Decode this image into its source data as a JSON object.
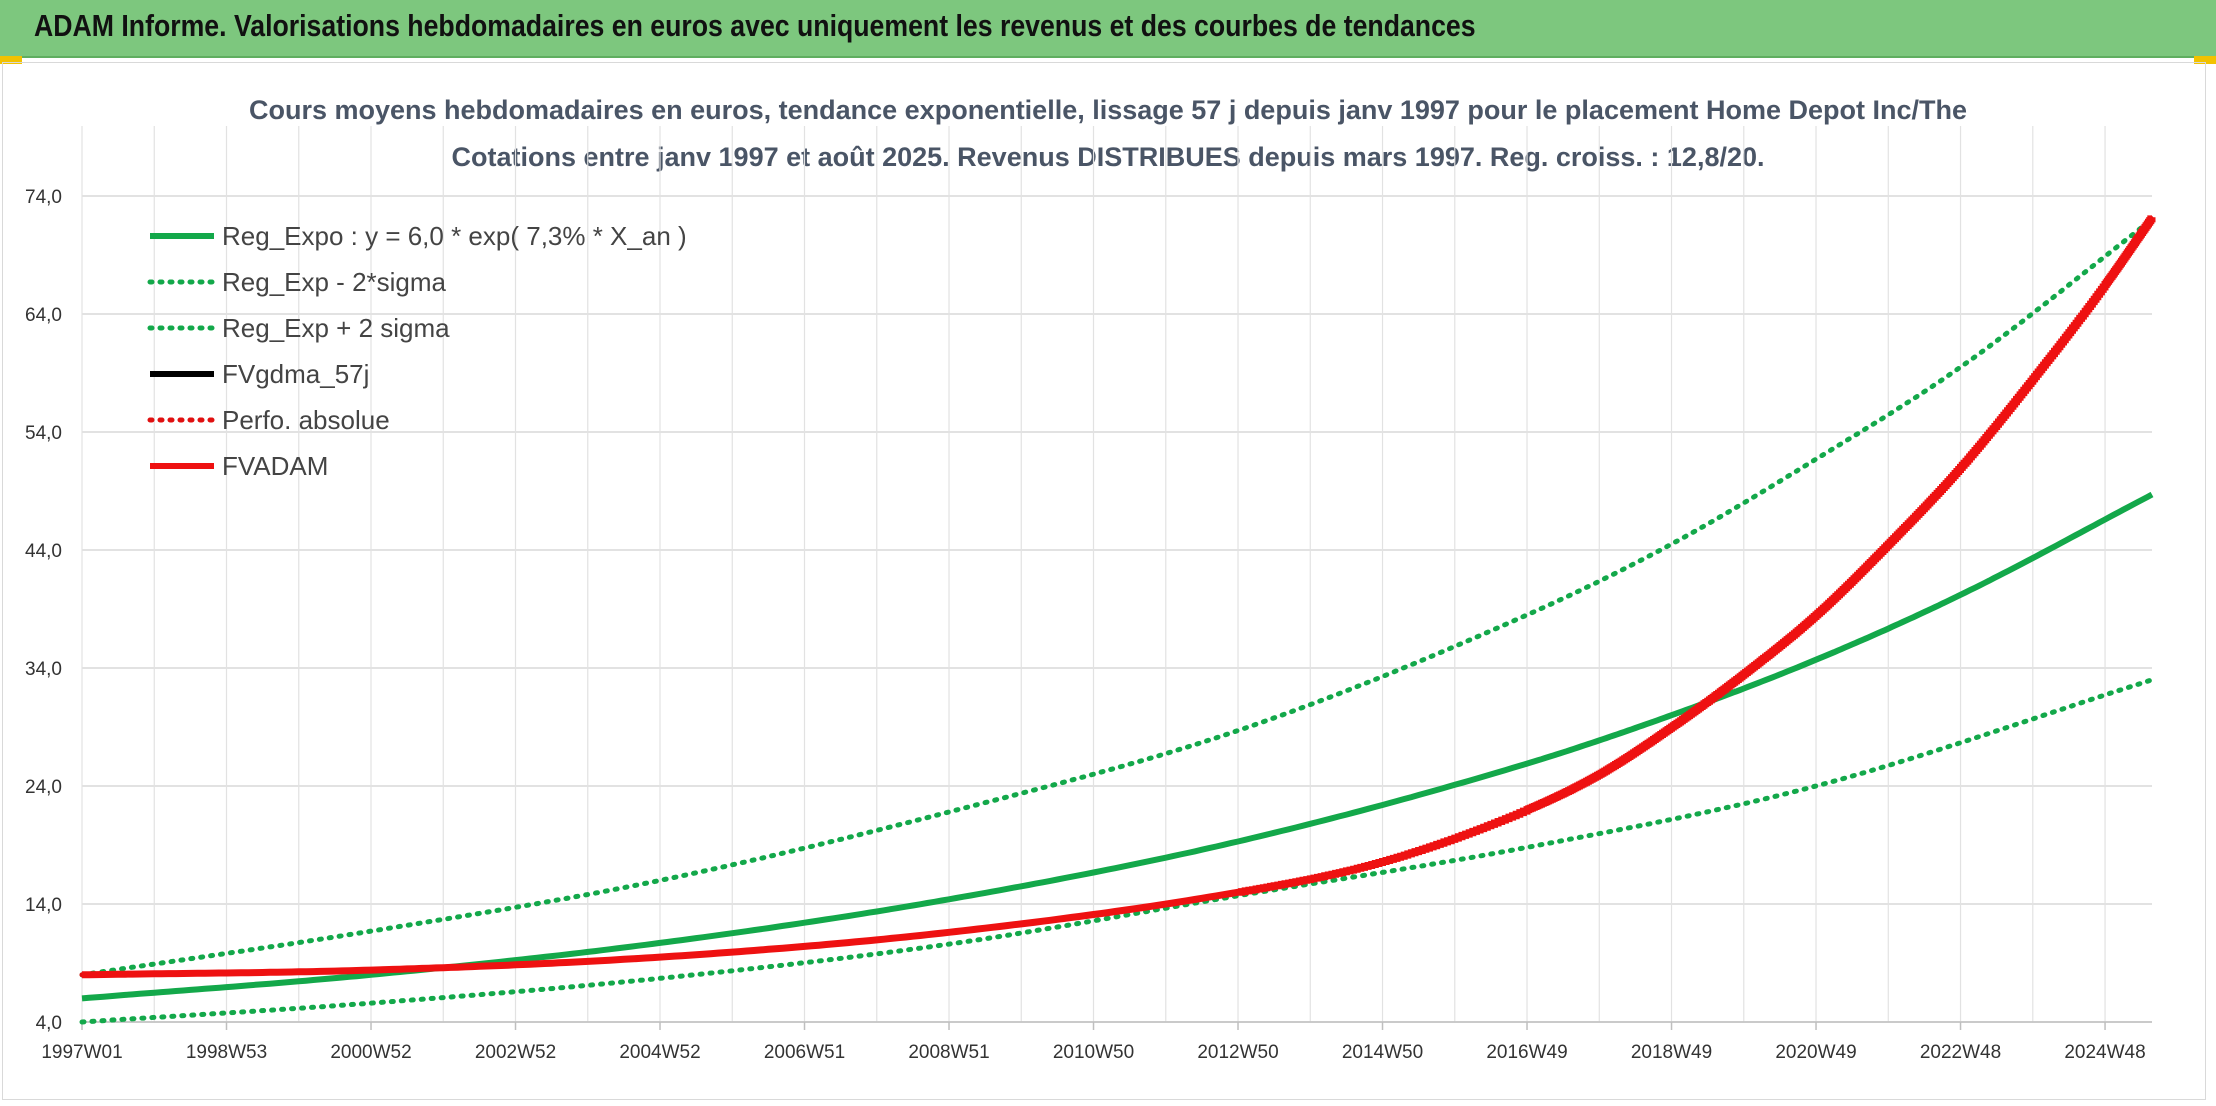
{
  "header": {
    "title": "ADAM Informe. Valorisations hebdomadaires en euros avec uniquement les revenus et des courbes de tendances"
  },
  "chart_data": {
    "type": "line",
    "title": "Cours moyens hebdomadaires en euros, tendance exponentielle, lissage 57 j depuis janv 1997 pour le placement Home Depot Inc/The",
    "subtitle": "Cotations entre janv 1997 et août 2025. Revenus DISTRIBUES depuis mars 1997. Reg. croiss. : 12,8/20.",
    "xlabel": "",
    "ylabel": "",
    "ylim": [
      4,
      74
    ],
    "yticks": [
      "4,0",
      "14,0",
      "24,0",
      "34,0",
      "44,0",
      "54,0",
      "64,0",
      "74,0"
    ],
    "xlim": [
      1997.0,
      2025.65
    ],
    "xticks": [
      {
        "label": "1997W01",
        "x": 1997.0
      },
      {
        "label": "1998W53",
        "x": 1999.0
      },
      {
        "label": "2000W52",
        "x": 2001.0
      },
      {
        "label": "2002W52",
        "x": 2003.0
      },
      {
        "label": "2004W52",
        "x": 2005.0
      },
      {
        "label": "2006W51",
        "x": 2007.0
      },
      {
        "label": "2008W51",
        "x": 2009.0
      },
      {
        "label": "2010W50",
        "x": 2011.0
      },
      {
        "label": "2012W50",
        "x": 2013.0
      },
      {
        "label": "2014W50",
        "x": 2015.0
      },
      {
        "label": "2016W49",
        "x": 2017.0
      },
      {
        "label": "2018W49",
        "x": 2019.0
      },
      {
        "label": "2020W49",
        "x": 2021.0
      },
      {
        "label": "2022W48",
        "x": 2023.0
      },
      {
        "label": "2024W48",
        "x": 2025.0
      }
    ],
    "grid": true,
    "legend_position": "top-left",
    "series": [
      {
        "name": "Reg_Expo : y = 6,0 * exp( 7,3% *  X_an )",
        "color": "#13a84a",
        "style": "solid",
        "x": [
          1997.0,
          2001.0,
          2005.0,
          2009.0,
          2013.0,
          2017.0,
          2019.0,
          2021.0,
          2023.0,
          2025.65
        ],
        "y": [
          6.0,
          8.0,
          10.7,
          14.4,
          19.3,
          25.9,
          30.0,
          34.7,
          40.2,
          48.7
        ]
      },
      {
        "name": "Reg_Exp - 2*sigma",
        "color": "#13a84a",
        "style": "dotted",
        "x": [
          1997.0,
          2001.0,
          2005.0,
          2009.0,
          2013.0,
          2017.0,
          2021.0,
          2025.65
        ],
        "y": [
          4.0,
          5.6,
          7.7,
          10.6,
          14.7,
          18.8,
          24.0,
          33.0
        ]
      },
      {
        "name": "Reg_Exp + 2 sigma",
        "color": "#13a84a",
        "style": "dotted",
        "x": [
          1997.0,
          2001.0,
          2005.0,
          2009.0,
          2013.0,
          2017.0,
          2019.0,
          2021.0,
          2023.0,
          2025.65
        ],
        "y": [
          8.0,
          11.7,
          16.0,
          21.8,
          28.7,
          38.5,
          44.5,
          51.7,
          59.5,
          72.0
        ]
      },
      {
        "name": "FVgdma_57j",
        "color": "#000000",
        "style": "solid",
        "x": [
          1997.0,
          2001.0,
          2005.0,
          2009.0,
          2013.0,
          2015.0,
          2017.0,
          2018.0,
          2019.0,
          2020.0,
          2021.0,
          2022.0,
          2023.0,
          2024.0,
          2025.0,
          2025.65
        ],
        "y": [
          8.0,
          8.4,
          9.5,
          11.6,
          15.0,
          17.6,
          22.0,
          25.0,
          29.0,
          33.5,
          38.5,
          44.5,
          51.0,
          58.5,
          66.5,
          72.2
        ]
      },
      {
        "name": "Perfo. absolue",
        "color": "#e01010",
        "style": "dotted",
        "x": [
          1997.0,
          2001.0,
          2005.0,
          2009.0,
          2013.0,
          2015.0,
          2017.0,
          2018.0,
          2019.0,
          2020.0,
          2021.0,
          2022.0,
          2023.0,
          2024.0,
          2025.0,
          2025.65
        ],
        "y": [
          8.0,
          8.4,
          9.5,
          11.6,
          15.0,
          17.6,
          22.0,
          25.0,
          29.0,
          33.5,
          38.5,
          44.5,
          51.0,
          58.5,
          66.5,
          72.2
        ]
      },
      {
        "name": "FVADAM",
        "color": "#ee1111",
        "style": "solid",
        "x": [
          1997.0,
          2001.0,
          2005.0,
          2009.0,
          2013.0,
          2015.0,
          2017.0,
          2018.0,
          2019.0,
          2020.0,
          2021.0,
          2022.0,
          2023.0,
          2024.0,
          2025.0,
          2025.65
        ],
        "y": [
          8.0,
          8.4,
          9.5,
          11.6,
          15.0,
          17.6,
          22.0,
          25.0,
          29.0,
          33.5,
          38.5,
          44.5,
          51.0,
          58.5,
          66.5,
          72.2
        ]
      }
    ]
  }
}
